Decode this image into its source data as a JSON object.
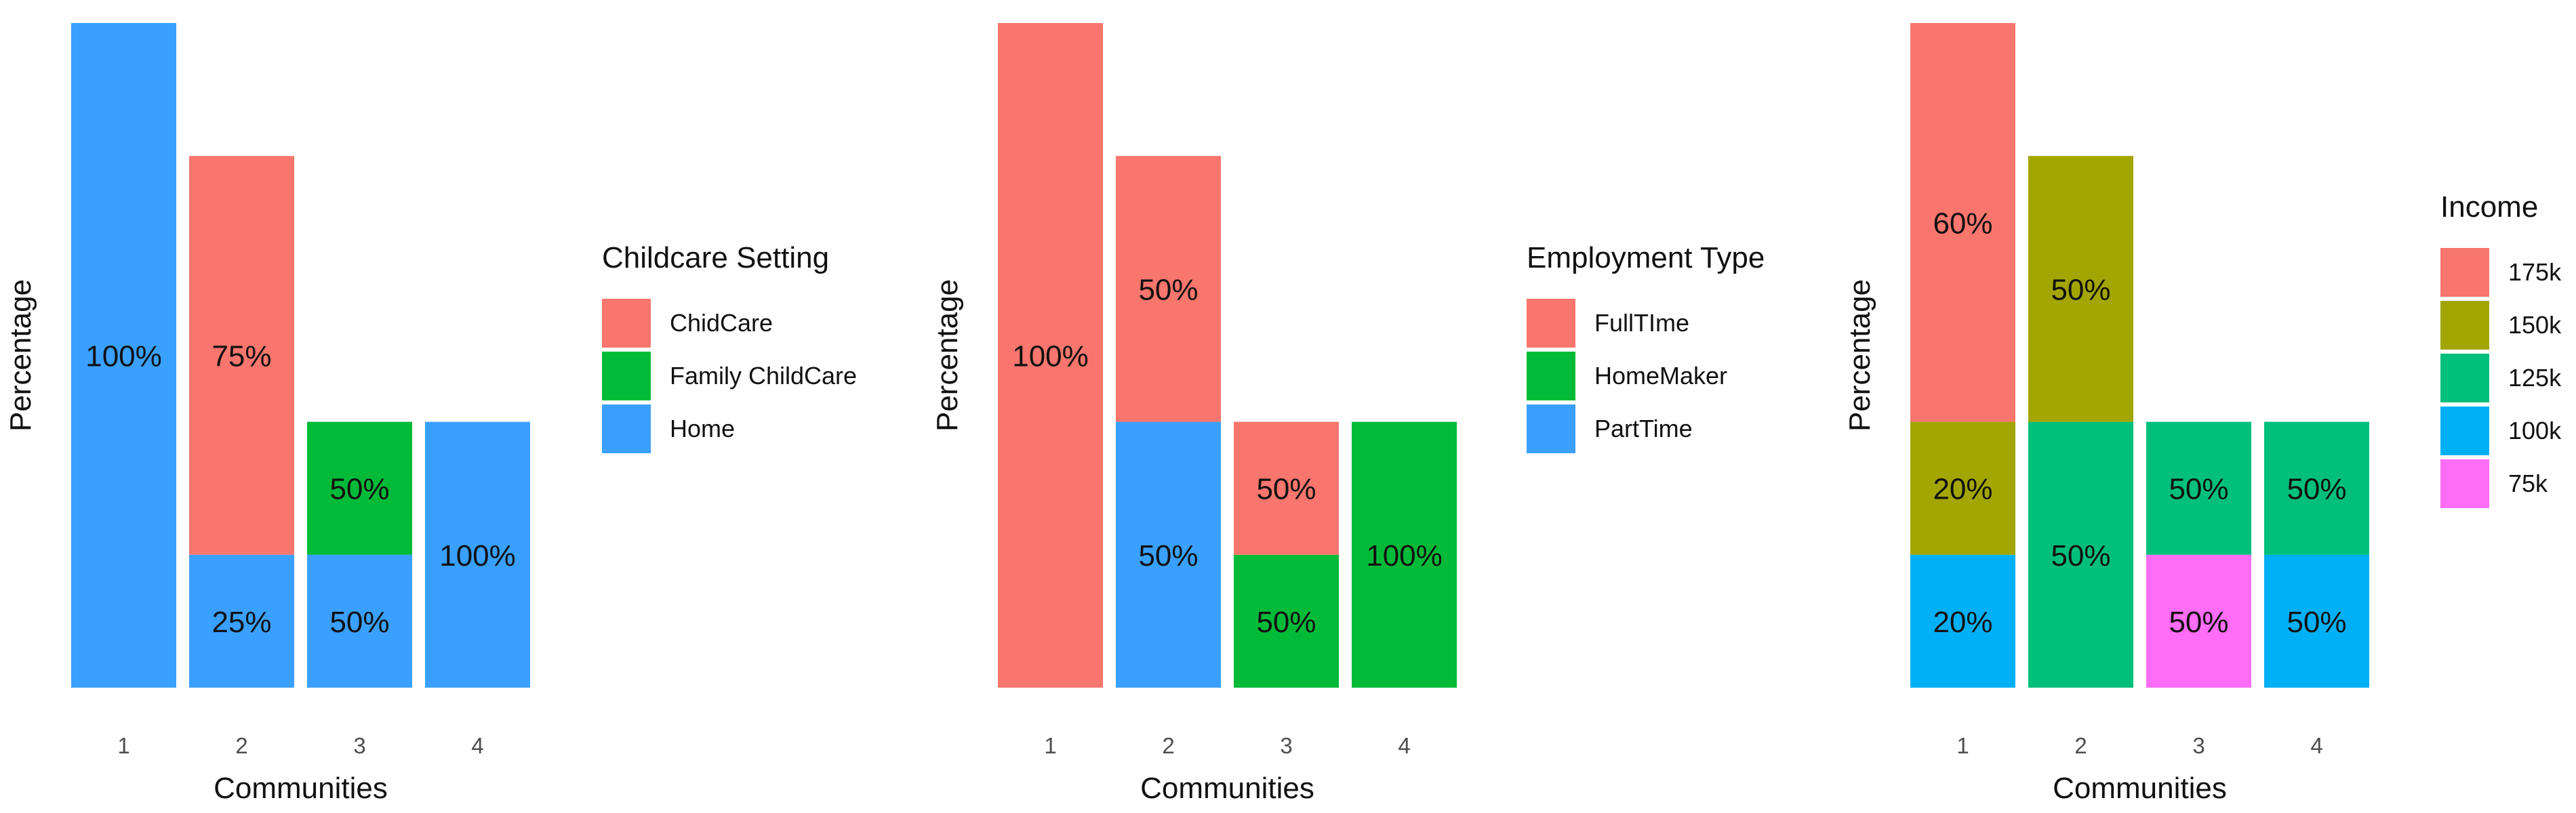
{
  "chart_data": [
    {
      "type": "bar",
      "stacked": true,
      "title": "",
      "xlabel": "Communities",
      "ylabel": "Percentage",
      "categories": [
        "1",
        "2",
        "3",
        "4"
      ],
      "totals": [
        5,
        4,
        2,
        2
      ],
      "legend": {
        "title": "Childcare Setting",
        "position": "right",
        "items": [
          {
            "label": "ChidCare",
            "color": "#F8766D"
          },
          {
            "label": "Family ChildCare",
            "color": "#00BA38"
          },
          {
            "label": "Home",
            "color": "#3AA0FF"
          }
        ]
      },
      "series": [
        {
          "name": "Home",
          "color": "#3AA0FF",
          "values": [
            5,
            1,
            1,
            2
          ],
          "labels": [
            "100%",
            "25%",
            "50%",
            "100%"
          ]
        },
        {
          "name": "Family ChildCare",
          "color": "#00BA38",
          "values": [
            0,
            0,
            1,
            0
          ],
          "labels": [
            "",
            "",
            "50%",
            ""
          ]
        },
        {
          "name": "ChidCare",
          "color": "#F8766D",
          "values": [
            0,
            3,
            0,
            0
          ],
          "labels": [
            "",
            "75%",
            "",
            ""
          ]
        }
      ]
    },
    {
      "type": "bar",
      "stacked": true,
      "title": "",
      "xlabel": "Communities",
      "ylabel": "Percentage",
      "categories": [
        "1",
        "2",
        "3",
        "4"
      ],
      "totals": [
        5,
        4,
        2,
        2
      ],
      "legend": {
        "title": "Employment Type",
        "position": "right",
        "items": [
          {
            "label": "FullTIme",
            "color": "#F8766D"
          },
          {
            "label": "HomeMaker",
            "color": "#00BA38"
          },
          {
            "label": "PartTime",
            "color": "#3AA0FF"
          }
        ]
      },
      "series": [
        {
          "name": "PartTime",
          "color": "#3AA0FF",
          "values": [
            0,
            2,
            0,
            0
          ],
          "labels": [
            "",
            "50%",
            "",
            ""
          ]
        },
        {
          "name": "HomeMaker",
          "color": "#00BA38",
          "values": [
            0,
            0,
            1,
            2
          ],
          "labels": [
            "",
            "",
            "50%",
            "100%"
          ]
        },
        {
          "name": "FullTIme",
          "color": "#F8766D",
          "values": [
            5,
            2,
            1,
            0
          ],
          "labels": [
            "100%",
            "50%",
            "50%",
            ""
          ]
        }
      ]
    },
    {
      "type": "bar",
      "stacked": true,
      "title": "",
      "xlabel": "Communities",
      "ylabel": "Percentage",
      "categories": [
        "1",
        "2",
        "3",
        "4"
      ],
      "totals": [
        5,
        4,
        2,
        2
      ],
      "legend": {
        "title": "Income",
        "position": "right",
        "items": [
          {
            "label": "175k",
            "color": "#F8766D"
          },
          {
            "label": "150k",
            "color": "#A3A500"
          },
          {
            "label": "125k",
            "color": "#00BF7D"
          },
          {
            "label": "100k",
            "color": "#00B0F6"
          },
          {
            "label": "75k",
            "color": "#FF6CF5"
          }
        ]
      },
      "series": [
        {
          "name": "75k",
          "color": "#FF6CF5",
          "values": [
            0,
            0,
            1,
            0
          ],
          "labels": [
            "",
            "",
            "50%",
            ""
          ]
        },
        {
          "name": "100k",
          "color": "#00B0F6",
          "values": [
            1,
            0,
            0,
            1
          ],
          "labels": [
            "20%",
            "",
            "",
            "50%"
          ]
        },
        {
          "name": "125k",
          "color": "#00BF7D",
          "values": [
            0,
            2,
            1,
            1
          ],
          "labels": [
            "",
            "50%",
            "50%",
            "50%"
          ]
        },
        {
          "name": "150k",
          "color": "#A3A500",
          "values": [
            1,
            2,
            0,
            0
          ],
          "labels": [
            "20%",
            "50%",
            "",
            ""
          ]
        },
        {
          "name": "175k",
          "color": "#F8766D",
          "values": [
            3,
            0,
            0,
            0
          ],
          "labels": [
            "60%",
            "",
            "",
            ""
          ]
        }
      ]
    }
  ]
}
